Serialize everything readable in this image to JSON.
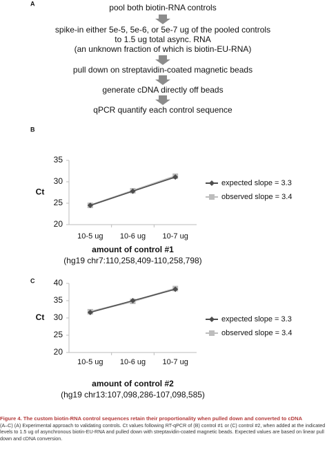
{
  "panel_a": {
    "label": "A",
    "steps": [
      "pool both biotin-RNA controls",
      "spike-in either 5e-5, 5e-6, or 5e-7 ug of the pooled controls",
      "to 1.5 ug total async. RNA",
      "(an unknown fraction of which is biotin-EU-RNA)",
      "pull down on streptavidin-coated magnetic beads",
      "generate cDNA directly off beads",
      "qPCR quantify each control sequence"
    ]
  },
  "chart_data": [
    {
      "type": "line",
      "panel_label": "B",
      "ylabel": "Ct",
      "xlabel": "amount of control #1",
      "subtitle": "(hg19 chr7:110,258,409-110,258,798)",
      "categories": [
        "10-5 ug",
        "10-6 ug",
        "10-7 ug"
      ],
      "series": [
        {
          "name": "expected slope = 3.3",
          "color": "#4d4d4d",
          "marker": "diamond",
          "values": [
            24.5,
            27.8,
            31.1
          ]
        },
        {
          "name": "observed slope = 3.4",
          "color": "#bdbdbd",
          "marker": "square",
          "values": [
            24.5,
            27.9,
            31.3
          ]
        }
      ],
      "ylim": [
        20,
        35
      ],
      "yticks": [
        20,
        25,
        30,
        35
      ],
      "legend": "right",
      "grid": false
    },
    {
      "type": "line",
      "panel_label": "C",
      "ylabel": "Ct",
      "xlabel": "amount of control #2",
      "subtitle": "(hg19 chr13:107,098,286-107,098,585)",
      "categories": [
        "10-5 ug",
        "10-6 ug",
        "10-7 ug"
      ],
      "series": [
        {
          "name": "expected slope = 3.3",
          "color": "#4d4d4d",
          "marker": "diamond",
          "values": [
            31.6,
            35.0,
            38.3
          ]
        },
        {
          "name": "observed slope = 3.4",
          "color": "#bdbdbd",
          "marker": "square",
          "values": [
            31.8,
            34.8,
            38.5
          ]
        }
      ],
      "ylim": [
        20,
        40
      ],
      "yticks": [
        20,
        25,
        30,
        35,
        40
      ],
      "legend": "right",
      "grid": false
    }
  ],
  "caption": {
    "title": "Figure 4.  The custom biotin-RNA control sequences retain their proportionality when pulled down and converted to cDNA",
    "body": "(A–C) (A) Experimental approach to validating controls. Ct values following RT-qPCR of (B) control #1 or (C) control #2, when added at the indicated levels to 1.5 ug of asynchronous biotin-EU-RNA and pulled down with streptavidin-coated magnetic beads. Expected values are based on linear pull down and cDNA conversion."
  }
}
